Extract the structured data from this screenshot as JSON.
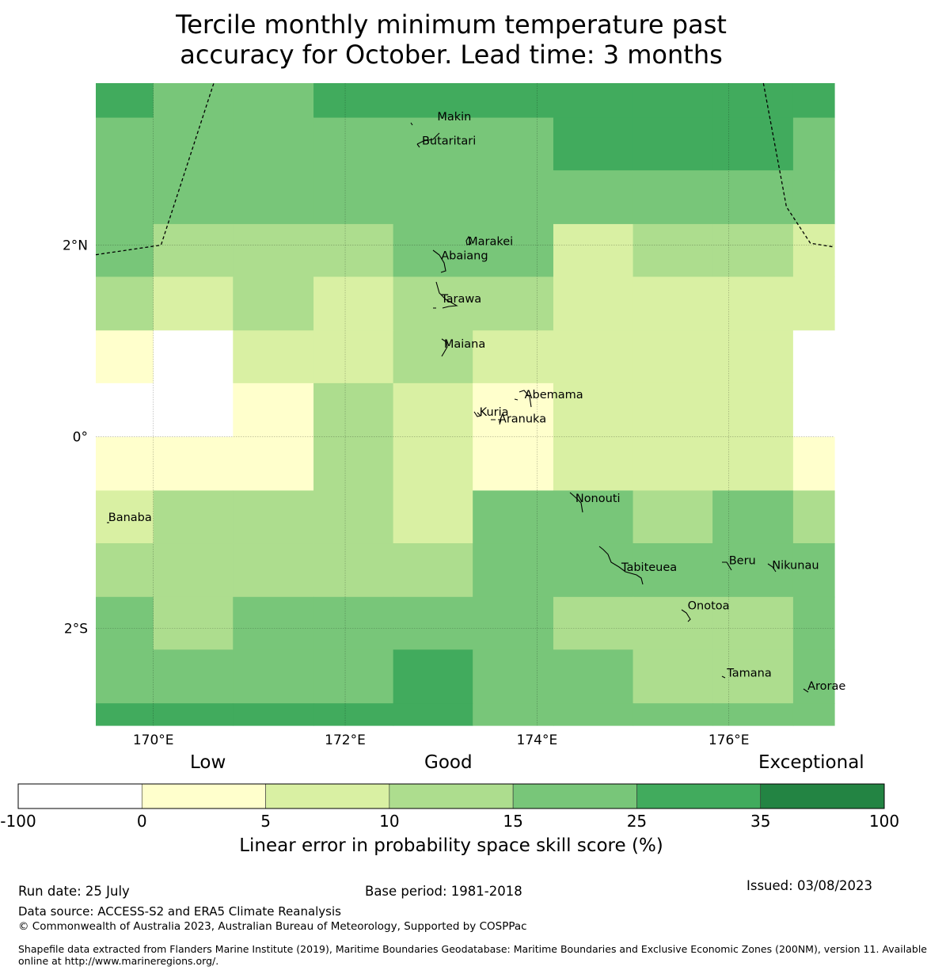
{
  "title": {
    "line1": "Tercile monthly minimum temperature past",
    "line2": "accuracy for October. Lead time: 3 months"
  },
  "map": {
    "lon_range": [
      169.4,
      177.1
    ],
    "lat_range": [
      -3.01,
      3.69
    ],
    "grid_lon": [
      170,
      172,
      174,
      176
    ],
    "grid_lat": [
      2,
      0,
      -2
    ],
    "lon_ticks": [
      "170°E",
      "172°E",
      "174°E",
      "176°E"
    ],
    "lat_ticks": [
      "2°N",
      "0°",
      "2°S"
    ],
    "cell_lon_edges": [
      169.4,
      170.0,
      170.83,
      171.67,
      172.5,
      173.33,
      174.17,
      175.0,
      175.83,
      176.67,
      177.1
    ],
    "cell_lat_edges": [
      3.69,
      3.33,
      2.78,
      2.22,
      1.67,
      1.11,
      0.56,
      0.0,
      -0.56,
      -1.11,
      -1.67,
      -2.22,
      -2.78,
      -3.01
    ],
    "skill_classes": [
      [
        5,
        4,
        4,
        5,
        5,
        5,
        5,
        5,
        5,
        5
      ],
      [
        4,
        4,
        4,
        4,
        4,
        4,
        5,
        5,
        5,
        4
      ],
      [
        4,
        4,
        4,
        4,
        4,
        4,
        4,
        4,
        4,
        4
      ],
      [
        4,
        3,
        3,
        3,
        4,
        4,
        2,
        3,
        3,
        2
      ],
      [
        3,
        2,
        3,
        2,
        3,
        3,
        2,
        2,
        2,
        2
      ],
      [
        1,
        0,
        2,
        2,
        3,
        2,
        2,
        2,
        2,
        0
      ],
      [
        0,
        0,
        1,
        3,
        2,
        1,
        2,
        2,
        2,
        0
      ],
      [
        1,
        1,
        1,
        3,
        2,
        1,
        2,
        2,
        2,
        1
      ],
      [
        2,
        3,
        3,
        3,
        2,
        4,
        4,
        3,
        4,
        3
      ],
      [
        3,
        3,
        3,
        3,
        3,
        4,
        4,
        4,
        4,
        4
      ],
      [
        4,
        3,
        4,
        4,
        4,
        4,
        3,
        3,
        3,
        4
      ],
      [
        4,
        4,
        4,
        4,
        5,
        4,
        4,
        3,
        3,
        4
      ],
      [
        5,
        5,
        5,
        5,
        5,
        4,
        4,
        4,
        4,
        4
      ]
    ],
    "islands": [
      {
        "name": "Makin",
        "lon": 172.96,
        "lat": 3.3
      },
      {
        "name": "Butaritari",
        "lon": 172.8,
        "lat": 3.05
      },
      {
        "name": "Marakei",
        "lon": 173.28,
        "lat": 2.0
      },
      {
        "name": "Abaiang",
        "lon": 173.0,
        "lat": 1.85
      },
      {
        "name": "Tarawa",
        "lon": 173.0,
        "lat": 1.4
      },
      {
        "name": "Maiana",
        "lon": 173.03,
        "lat": 0.93
      },
      {
        "name": "Abemama",
        "lon": 173.87,
        "lat": 0.4
      },
      {
        "name": "Kuria",
        "lon": 173.4,
        "lat": 0.22
      },
      {
        "name": "Aranuka",
        "lon": 173.6,
        "lat": 0.15
      },
      {
        "name": "Nonouti",
        "lon": 174.4,
        "lat": -0.68
      },
      {
        "name": "Banaba",
        "lon": 169.53,
        "lat": -0.88
      },
      {
        "name": "Tabiteuea",
        "lon": 174.88,
        "lat": -1.4
      },
      {
        "name": "Beru",
        "lon": 176.0,
        "lat": -1.33
      },
      {
        "name": "Nikunau",
        "lon": 176.45,
        "lat": -1.38
      },
      {
        "name": "Onotoa",
        "lon": 175.57,
        "lat": -1.8
      },
      {
        "name": "Tamana",
        "lon": 175.98,
        "lat": -2.5
      },
      {
        "name": "Arorae",
        "lon": 176.82,
        "lat": -2.64
      }
    ],
    "eez_west": [
      [
        169.4,
        1.9
      ],
      [
        170.08,
        2.0
      ],
      [
        170.63,
        3.69
      ]
    ],
    "eez_east": [
      [
        176.36,
        3.69
      ],
      [
        176.6,
        2.4
      ],
      [
        176.85,
        2.02
      ],
      [
        177.1,
        1.98
      ]
    ]
  },
  "colorbar": {
    "heading_low": "Low",
    "heading_good": "Good",
    "heading_exceptional": "Exceptional",
    "ticks": [
      "-100",
      "0",
      "5",
      "10",
      "15",
      "25",
      "35",
      "100"
    ],
    "colors": [
      "#ffffff",
      "#ffffcc",
      "#d9f0a3",
      "#addd8e",
      "#78c679",
      "#41ab5d",
      "#238443"
    ],
    "label": "Linear error in probability space skill score (%)"
  },
  "footer": {
    "run_date": "Run date: 25 July",
    "base_period": "Base period: 1981-2018",
    "issued": "Issued: 03/08/2023",
    "data_source": "Data source: ACCESS-S2 and ERA5 Climate Reanalysis",
    "copyright": "© Commonwealth of Australia 2023, Australian Bureau of Meteorology, Supported by COSPPac",
    "shapefile_line1": "Shapefile data extracted from Flanders Marine Institute (2019), Maritime Boundaries Geodatabase: Maritime Boundaries and Exclusive Economic Zones (200NM), version 11. Available",
    "shapefile_line2": "online at http://www.marineregions.org/."
  }
}
